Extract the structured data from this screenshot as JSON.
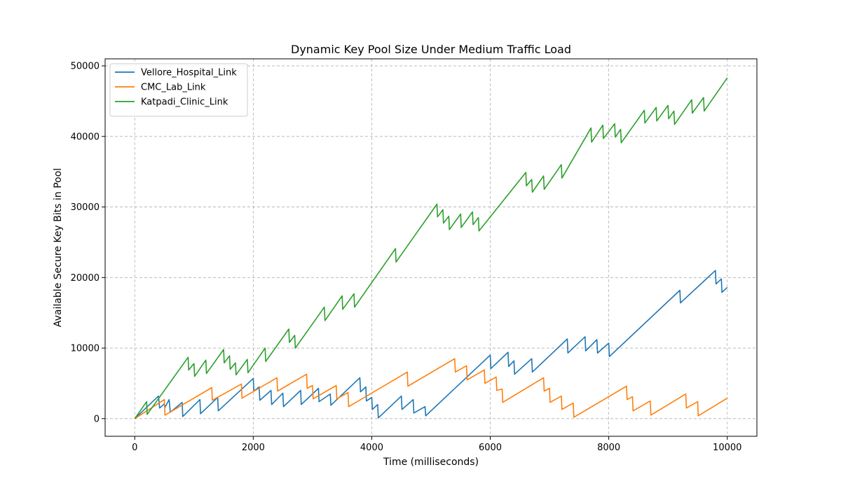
{
  "chart_data": {
    "type": "line",
    "title": "Dynamic Key Pool Size Under Medium Traffic Load",
    "xlabel": "Time (milliseconds)",
    "ylabel": "Available Secure Key Bits in Pool",
    "xlim": [
      -500,
      10500
    ],
    "ylim": [
      -2500,
      51000
    ],
    "xticks": [
      0,
      2000,
      4000,
      6000,
      8000,
      10000
    ],
    "yticks": [
      0,
      10000,
      20000,
      30000,
      40000,
      50000
    ],
    "grid": true,
    "legend_position": "top-left",
    "series": [
      {
        "name": "Vellore_Hospital_Link",
        "color": "#1f77b4",
        "points": [
          [
            0,
            0
          ],
          [
            400,
            3200
          ],
          [
            420,
            1500
          ],
          [
            500,
            2100
          ],
          [
            510,
            1600
          ],
          [
            580,
            2700
          ],
          [
            600,
            900
          ],
          [
            800,
            2300
          ],
          [
            810,
            300
          ],
          [
            1100,
            2700
          ],
          [
            1110,
            700
          ],
          [
            1400,
            3000
          ],
          [
            1410,
            1100
          ],
          [
            2000,
            5700
          ],
          [
            2010,
            3900
          ],
          [
            2100,
            4500
          ],
          [
            2110,
            2600
          ],
          [
            2300,
            4000
          ],
          [
            2310,
            2000
          ],
          [
            2500,
            3600
          ],
          [
            2510,
            1700
          ],
          [
            2800,
            4000
          ],
          [
            2810,
            2000
          ],
          [
            3100,
            4300
          ],
          [
            3110,
            2400
          ],
          [
            3300,
            3500
          ],
          [
            3310,
            1900
          ],
          [
            3800,
            5800
          ],
          [
            3810,
            3800
          ],
          [
            3900,
            4500
          ],
          [
            3910,
            2500
          ],
          [
            4000,
            3000
          ],
          [
            4010,
            1300
          ],
          [
            4100,
            2000
          ],
          [
            4110,
            100
          ],
          [
            4500,
            3200
          ],
          [
            4510,
            1300
          ],
          [
            4700,
            2700
          ],
          [
            4710,
            800
          ],
          [
            4900,
            1700
          ],
          [
            4910,
            400
          ],
          [
            6000,
            9000
          ],
          [
            6010,
            7100
          ],
          [
            6300,
            9400
          ],
          [
            6310,
            7400
          ],
          [
            6400,
            8200
          ],
          [
            6410,
            6300
          ],
          [
            6700,
            8500
          ],
          [
            6710,
            6600
          ],
          [
            7300,
            11300
          ],
          [
            7310,
            9300
          ],
          [
            7600,
            11600
          ],
          [
            7610,
            9600
          ],
          [
            7800,
            11200
          ],
          [
            7810,
            9300
          ],
          [
            8000,
            10700
          ],
          [
            8010,
            8800
          ],
          [
            9200,
            18200
          ],
          [
            9210,
            16400
          ],
          [
            9800,
            21000
          ],
          [
            9810,
            19100
          ],
          [
            9900,
            19800
          ],
          [
            9910,
            17900
          ],
          [
            10000,
            18600
          ]
        ]
      },
      {
        "name": "CMC_Lab_Link",
        "color": "#ff7f0e",
        "points": [
          [
            0,
            0
          ],
          [
            500,
            2700
          ],
          [
            510,
            500
          ],
          [
            1300,
            4400
          ],
          [
            1310,
            2600
          ],
          [
            1800,
            4900
          ],
          [
            1810,
            2900
          ],
          [
            2400,
            5800
          ],
          [
            2410,
            3900
          ],
          [
            2900,
            6300
          ],
          [
            2910,
            4300
          ],
          [
            3000,
            4700
          ],
          [
            3010,
            2800
          ],
          [
            3400,
            4700
          ],
          [
            3410,
            2800
          ],
          [
            3600,
            3700
          ],
          [
            3610,
            1700
          ],
          [
            4600,
            6600
          ],
          [
            4610,
            4600
          ],
          [
            5400,
            8500
          ],
          [
            5410,
            6600
          ],
          [
            5600,
            7500
          ],
          [
            5610,
            5500
          ],
          [
            5900,
            6900
          ],
          [
            5910,
            5000
          ],
          [
            6100,
            5900
          ],
          [
            6110,
            4000
          ],
          [
            6200,
            4200
          ],
          [
            6210,
            2300
          ],
          [
            6900,
            5800
          ],
          [
            6910,
            3900
          ],
          [
            7000,
            4300
          ],
          [
            7010,
            2300
          ],
          [
            7200,
            3200
          ],
          [
            7210,
            1300
          ],
          [
            7400,
            2200
          ],
          [
            7410,
            200
          ],
          [
            8300,
            4600
          ],
          [
            8310,
            2700
          ],
          [
            8400,
            3100
          ],
          [
            8410,
            1100
          ],
          [
            8700,
            2500
          ],
          [
            8710,
            500
          ],
          [
            9300,
            3500
          ],
          [
            9310,
            1500
          ],
          [
            9500,
            2400
          ],
          [
            9510,
            400
          ],
          [
            10000,
            2900
          ]
        ]
      },
      {
        "name": "Katpadi_Clinic_Link",
        "color": "#2ca02c",
        "points": [
          [
            0,
            0
          ],
          [
            200,
            2400
          ],
          [
            210,
            600
          ],
          [
            900,
            8700
          ],
          [
            910,
            6900
          ],
          [
            1000,
            7800
          ],
          [
            1010,
            6000
          ],
          [
            1200,
            8300
          ],
          [
            1210,
            6400
          ],
          [
            1500,
            9800
          ],
          [
            1510,
            7900
          ],
          [
            1600,
            8900
          ],
          [
            1610,
            7000
          ],
          [
            1700,
            7900
          ],
          [
            1710,
            6200
          ],
          [
            1900,
            8400
          ],
          [
            1910,
            6500
          ],
          [
            2200,
            10000
          ],
          [
            2210,
            8100
          ],
          [
            2600,
            12700
          ],
          [
            2610,
            10800
          ],
          [
            2700,
            11800
          ],
          [
            2710,
            10000
          ],
          [
            3200,
            15800
          ],
          [
            3210,
            13900
          ],
          [
            3500,
            17400
          ],
          [
            3510,
            15500
          ],
          [
            3700,
            17700
          ],
          [
            3710,
            15800
          ],
          [
            4400,
            24100
          ],
          [
            4410,
            22200
          ],
          [
            5100,
            30400
          ],
          [
            5110,
            28600
          ],
          [
            5200,
            29600
          ],
          [
            5210,
            27700
          ],
          [
            5300,
            28700
          ],
          [
            5310,
            26800
          ],
          [
            5500,
            29000
          ],
          [
            5510,
            27100
          ],
          [
            5700,
            29300
          ],
          [
            5710,
            27500
          ],
          [
            5800,
            28500
          ],
          [
            5810,
            26600
          ],
          [
            6600,
            34900
          ],
          [
            6610,
            33000
          ],
          [
            6700,
            33900
          ],
          [
            6710,
            32100
          ],
          [
            6900,
            34400
          ],
          [
            6910,
            32500
          ],
          [
            7200,
            36000
          ],
          [
            7210,
            34100
          ],
          [
            7700,
            41200
          ],
          [
            7710,
            39200
          ],
          [
            7900,
            41600
          ],
          [
            7910,
            39700
          ],
          [
            8100,
            41800
          ],
          [
            8110,
            39900
          ],
          [
            8200,
            41000
          ],
          [
            8210,
            39100
          ],
          [
            8600,
            43700
          ],
          [
            8610,
            41900
          ],
          [
            8800,
            44100
          ],
          [
            8810,
            42200
          ],
          [
            9000,
            44400
          ],
          [
            9010,
            42500
          ],
          [
            9100,
            43600
          ],
          [
            9110,
            41700
          ],
          [
            9400,
            45200
          ],
          [
            9410,
            43300
          ],
          [
            9600,
            45500
          ],
          [
            9610,
            43600
          ],
          [
            10000,
            48300
          ]
        ]
      }
    ]
  }
}
